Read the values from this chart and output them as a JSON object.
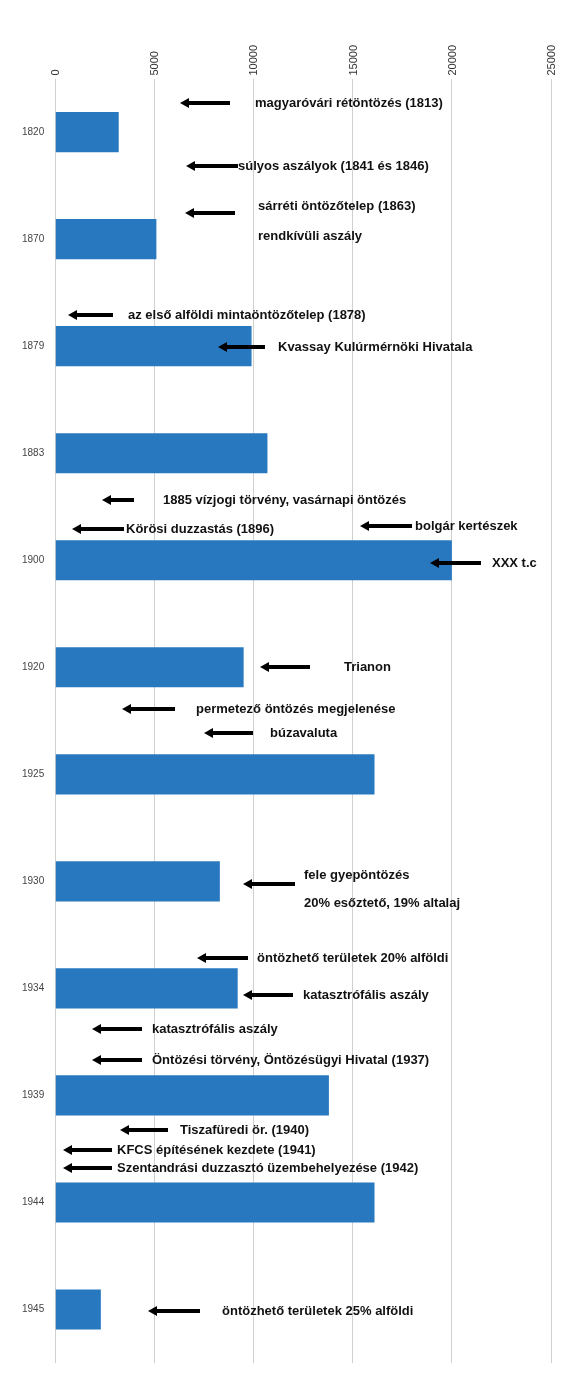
{
  "chart_data": {
    "type": "bar",
    "orientation": "horizontal",
    "categories": [
      "1820",
      "1870",
      "1879",
      "1883",
      "1900",
      "1920",
      "1925",
      "1930",
      "1934",
      "1939",
      "1944",
      "1945"
    ],
    "values": [
      3200,
      5100,
      9900,
      10700,
      20000,
      9500,
      16100,
      8300,
      9200,
      13800,
      16100,
      2300
    ],
    "color": "#2878c0",
    "xlim": [
      0,
      25000
    ],
    "xticks": [
      0,
      5000,
      10000,
      15000,
      20000,
      25000
    ],
    "grid": "x",
    "annotations": [
      "magyaróvári rétöntözés (1813)",
      "súlyos aszályok (1841 és 1846)",
      "sárréti öntözőtelep (1863)",
      "rendkívüli aszály",
      "az első alföldi mintaöntözőtelep (1878)",
      "Kvassay Kulúrmérnöki Hivatala",
      "1885 vízjogi törvény, vasárnapi öntözés",
      "Körösi duzzastás (1896)",
      "bolgár kertészek",
      "XXX t.c",
      "Trianon",
      "permetező öntözés megjelenése",
      "búzavaluta",
      "fele gyepöntözés",
      "20% esőztető, 19% altalaj",
      "öntözhető területek 20% alföldi",
      "katasztrófális aszály",
      "katasztrófális aszály",
      "Öntözési törvény, Öntözésügyi Hivatal (1937)",
      "Tiszafüredi ör. (1940)",
      "KFCS építésének kezdete (1941)",
      "Szentandrási duzzasztó üzembehelyezése (1942)",
      "öntözhető területek 25% alföldi"
    ]
  }
}
